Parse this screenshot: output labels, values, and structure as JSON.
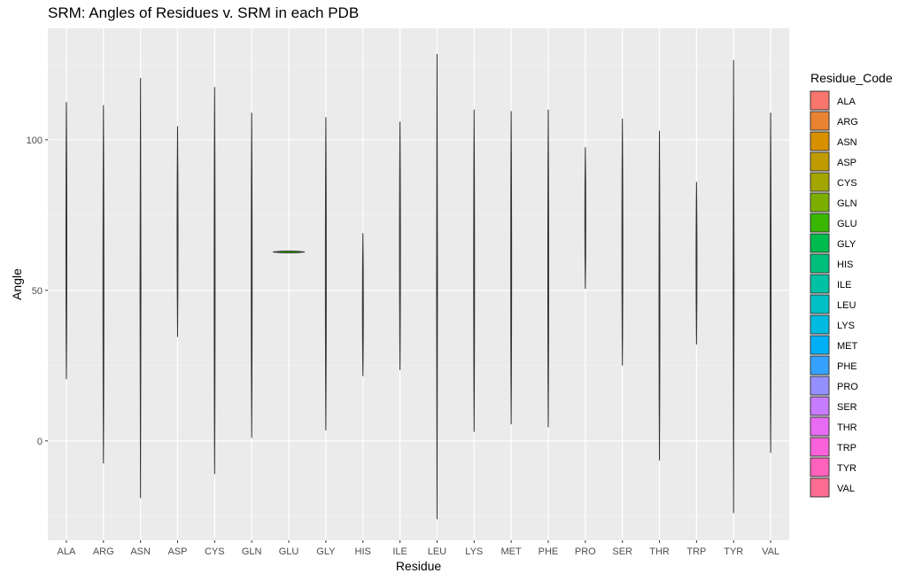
{
  "chart_data": {
    "type": "violin",
    "title": "SRM: Angles of Residues v. SRM in each PDB",
    "xlabel": "Residue",
    "ylabel": "Angle",
    "ylim": [
      -33,
      137
    ],
    "yticks": [
      0,
      50,
      100
    ],
    "grid": true,
    "legend": {
      "title": "Residue_Code",
      "placement": "right"
    },
    "categories": [
      "ALA",
      "ARG",
      "ASN",
      "ASP",
      "CYS",
      "GLN",
      "GLU",
      "GLY",
      "HIS",
      "ILE",
      "LEU",
      "LYS",
      "MET",
      "PHE",
      "PRO",
      "SER",
      "THR",
      "TRP",
      "TYR",
      "VAL"
    ],
    "series": [
      {
        "name": "ALA",
        "color": "#F8766D",
        "min": 20.5,
        "max": 112.5
      },
      {
        "name": "ARG",
        "color": "#EA8331",
        "min": -7.5,
        "max": 111.5
      },
      {
        "name": "ASN",
        "color": "#D89000",
        "min": -19,
        "max": 120.5
      },
      {
        "name": "ASP",
        "color": "#C09B00",
        "min": 34.5,
        "max": 104.5
      },
      {
        "name": "CYS",
        "color": "#A3A500",
        "min": -11,
        "max": 117.5
      },
      {
        "name": "GLN",
        "color": "#7CAE00",
        "min": 1,
        "max": 109
      },
      {
        "name": "GLU",
        "color": "#39B600",
        "min": 62.5,
        "max": 63
      },
      {
        "name": "GLY",
        "color": "#00BB4E",
        "min": 3.5,
        "max": 107.5
      },
      {
        "name": "HIS",
        "color": "#00BF7D",
        "min": 21.5,
        "max": 69
      },
      {
        "name": "ILE",
        "color": "#00C1A3",
        "min": 23.5,
        "max": 106
      },
      {
        "name": "LEU",
        "color": "#00BFC4",
        "min": -26,
        "max": 128.5
      },
      {
        "name": "LYS",
        "color": "#00BAE0",
        "min": 3,
        "max": 110
      },
      {
        "name": "MET",
        "color": "#00B0F6",
        "min": 5.5,
        "max": 109.5
      },
      {
        "name": "PHE",
        "color": "#35A2FF",
        "min": 4.5,
        "max": 110
      },
      {
        "name": "PRO",
        "color": "#9590FF",
        "min": 50.5,
        "max": 97.5
      },
      {
        "name": "SER",
        "color": "#C77CFF",
        "min": 25,
        "max": 107
      },
      {
        "name": "THR",
        "color": "#E76BF3",
        "min": -6.5,
        "max": 103
      },
      {
        "name": "TRP",
        "color": "#FA62DB",
        "min": 32,
        "max": 86
      },
      {
        "name": "TYR",
        "color": "#FF62BC",
        "min": -24,
        "max": 126.5
      },
      {
        "name": "VAL",
        "color": "#FF6C91",
        "min": -4,
        "max": 109
      }
    ]
  }
}
